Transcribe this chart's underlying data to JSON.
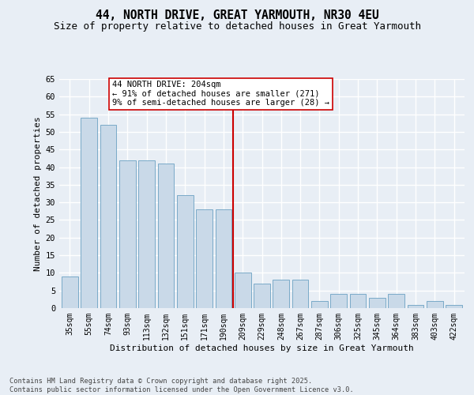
{
  "title": "44, NORTH DRIVE, GREAT YARMOUTH, NR30 4EU",
  "subtitle": "Size of property relative to detached houses in Great Yarmouth",
  "xlabel": "Distribution of detached houses by size in Great Yarmouth",
  "ylabel": "Number of detached properties",
  "categories": [
    "35sqm",
    "55sqm",
    "74sqm",
    "93sqm",
    "113sqm",
    "132sqm",
    "151sqm",
    "171sqm",
    "190sqm",
    "209sqm",
    "229sqm",
    "248sqm",
    "267sqm",
    "287sqm",
    "306sqm",
    "325sqm",
    "345sqm",
    "364sqm",
    "383sqm",
    "403sqm",
    "422sqm"
  ],
  "values": [
    9,
    54,
    52,
    42,
    42,
    41,
    32,
    28,
    28,
    10,
    7,
    8,
    8,
    2,
    4,
    4,
    3,
    4,
    1,
    2,
    1
  ],
  "bar_color": "#c9d9e8",
  "bar_edge_color": "#7aaac8",
  "background_color": "#e8eef5",
  "grid_color": "#ffffff",
  "vline_color": "#cc0000",
  "annotation_text": "44 NORTH DRIVE: 204sqm\n← 91% of detached houses are smaller (271)\n9% of semi-detached houses are larger (28) →",
  "ylim_max": 65,
  "yticks": [
    0,
    5,
    10,
    15,
    20,
    25,
    30,
    35,
    40,
    45,
    50,
    55,
    60,
    65
  ],
  "footnote_line1": "Contains HM Land Registry data © Crown copyright and database right 2025.",
  "footnote_line2": "Contains public sector information licensed under the Open Government Licence v3.0."
}
